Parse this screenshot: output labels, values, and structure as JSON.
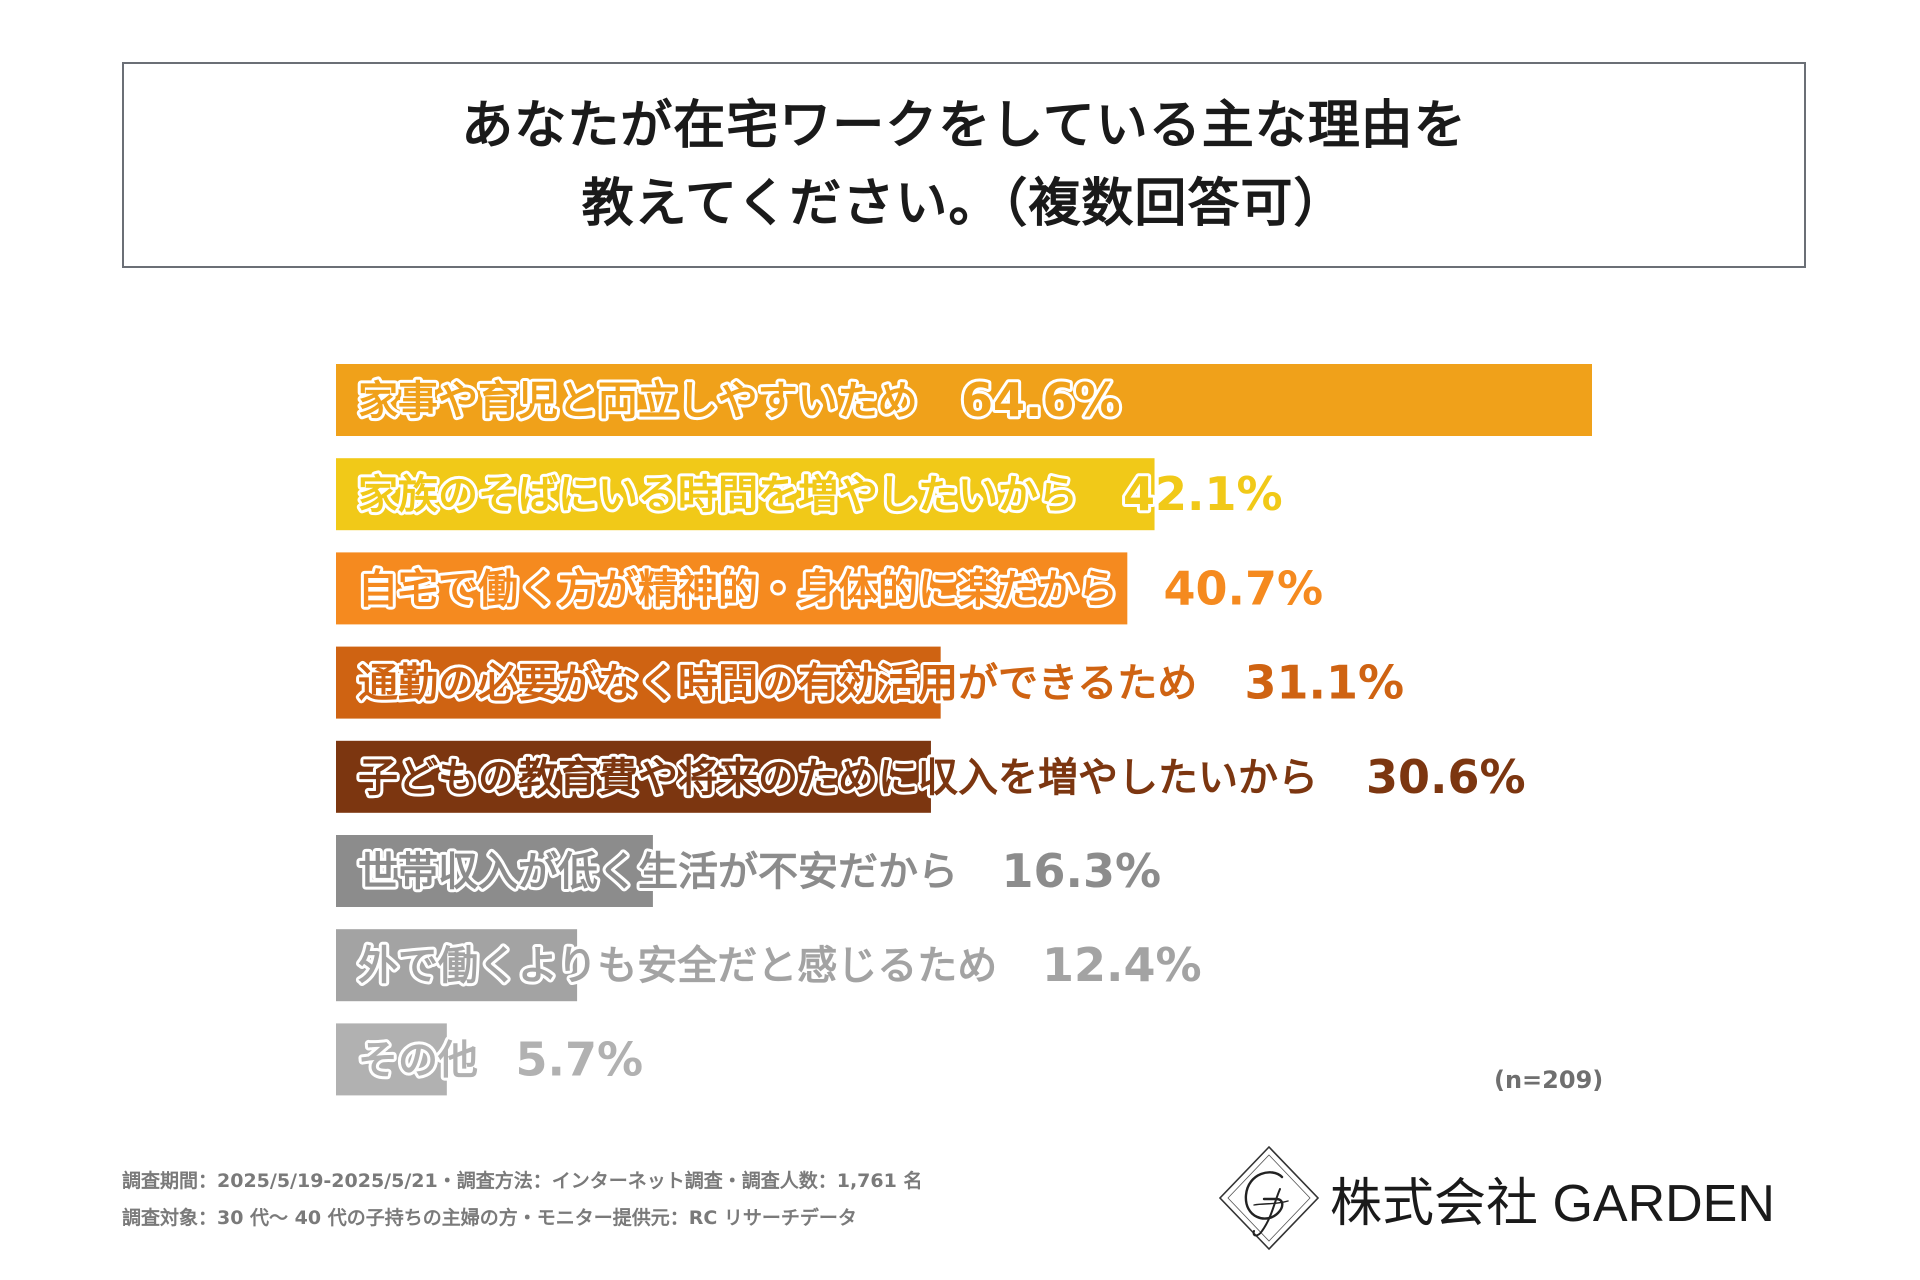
{
  "title_lines": [
    "あなたが在宅ワークをしている主な理由を",
    "教えてください。（複数回答可）"
  ],
  "chart_data": {
    "type": "bar",
    "orientation": "horizontal",
    "max_value": 64.6,
    "categories": [
      "家事や育児と両立しやすいため",
      "家族のそばにいる時間を増やしたいから",
      "自宅で働く方が精神的・身体的に楽だから",
      "通勤の必要がなく時間の有効活用ができるため",
      "子どもの教育費や将来のために収入を増やしたいから",
      "世帯収入が低く生活が不安だから",
      "外で働くよりも安全だと感じるため",
      "その他"
    ],
    "values": [
      64.6,
      42.1,
      40.7,
      31.1,
      30.6,
      16.3,
      12.4,
      5.7
    ],
    "value_labels": [
      "64.6%",
      "42.1%",
      "40.7%",
      "31.1%",
      "30.6%",
      "16.3%",
      "12.4%",
      "5.7%"
    ],
    "colors": [
      "#f0a11a",
      "#f1c918",
      "#f58a1f",
      "#cf6312",
      "#7c3610",
      "#8c8c8c",
      "#a3a3a3",
      "#b1b1b1"
    ]
  },
  "sample_size": "(n=209)",
  "footnotes": [
    "調査期間：2025/5/19-2025/5/21・調査方法：インターネット調査・調査人数：1,761 名",
    "調査対象：30 代〜 40 代の子持ちの主婦の方・モニター提供元：RC リサーチデータ"
  ],
  "logo": {
    "icon": "garden-monogram-icon",
    "text": "株式会社 GARDEN"
  }
}
